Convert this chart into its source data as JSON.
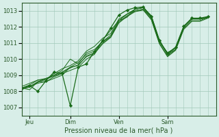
{
  "bg_color": "#d8eee8",
  "grid_color": "#a0c8b8",
  "line_color": "#1a6b1a",
  "marker_color": "#1a6b1a",
  "axis_label_color": "#2a5a2a",
  "tick_label_color": "#2a5a2a",
  "xlabel": "Pression niveau de la mer( hPa )",
  "ylim": [
    1006.5,
    1013.5
  ],
  "yticks": [
    1007,
    1008,
    1009,
    1010,
    1011,
    1012,
    1013
  ],
  "xlim": [
    0,
    144
  ],
  "day_positions": [
    6,
    36,
    72,
    108,
    144
  ],
  "day_labels": [
    "Jeu",
    "Dim",
    "Ven",
    "Sam"
  ],
  "smooth_series": [
    [
      0,
      1008.2,
      6,
      1008.3,
      12,
      1008.5,
      18,
      1008.6,
      24,
      1008.8,
      30,
      1009.0,
      36,
      1009.5,
      42,
      1009.8,
      48,
      1010.3,
      54,
      1010.5,
      60,
      1011.1,
      66,
      1011.5,
      72,
      1012.4,
      78,
      1012.8,
      84,
      1013.1,
      90,
      1013.2,
      96,
      1012.6,
      102,
      1011.1,
      108,
      1010.3,
      114,
      1010.7,
      120,
      1012.0,
      126,
      1012.5,
      132,
      1012.5,
      138,
      1012.6
    ],
    [
      0,
      1008.2,
      6,
      1008.1,
      12,
      1008.6,
      18,
      1008.6,
      24,
      1008.9,
      30,
      1009.1,
      36,
      1009.3,
      42,
      1009.5,
      48,
      1010.0,
      54,
      1010.3,
      60,
      1011.2,
      66,
      1011.8,
      72,
      1012.4,
      78,
      1012.8,
      84,
      1013.0,
      90,
      1013.1,
      96,
      1012.6,
      102,
      1011.1,
      108,
      1010.4,
      114,
      1010.7,
      120,
      1012.0,
      126,
      1012.5,
      132,
      1012.5,
      138,
      1012.6
    ],
    [
      0,
      1008.2,
      6,
      1008.4,
      12,
      1008.7,
      18,
      1008.8,
      24,
      1009.0,
      30,
      1009.3,
      36,
      1010.0,
      42,
      1009.7,
      48,
      1010.4,
      54,
      1010.6,
      60,
      1011.1,
      66,
      1011.4,
      72,
      1012.4,
      78,
      1012.6,
      84,
      1013.1,
      90,
      1013.2,
      96,
      1012.7,
      102,
      1011.1,
      108,
      1010.4,
      114,
      1010.7,
      120,
      1012.0,
      126,
      1012.5,
      132,
      1012.5,
      138,
      1012.6
    ],
    [
      0,
      1008.3,
      6,
      1008.5,
      12,
      1008.7,
      18,
      1008.7,
      24,
      1009.1,
      30,
      1009.4,
      36,
      1009.6,
      42,
      1009.9,
      48,
      1010.5,
      54,
      1010.8,
      60,
      1011.3,
      66,
      1011.6,
      72,
      1012.5,
      78,
      1012.8,
      84,
      1013.1,
      90,
      1013.2,
      96,
      1012.7,
      102,
      1011.2,
      108,
      1010.3,
      114,
      1010.6,
      120,
      1012.0,
      126,
      1012.5,
      132,
      1012.5,
      138,
      1012.6
    ],
    [
      0,
      1008.2,
      6,
      1008.3,
      12,
      1008.6,
      18,
      1008.8,
      24,
      1009.0,
      30,
      1009.2,
      36,
      1009.5,
      42,
      1009.6,
      48,
      1010.2,
      54,
      1010.4,
      60,
      1011.0,
      66,
      1011.4,
      72,
      1012.3,
      78,
      1012.7,
      84,
      1013.0,
      90,
      1013.1,
      96,
      1012.5,
      102,
      1011.0,
      108,
      1010.2,
      114,
      1010.6,
      120,
      1011.9,
      126,
      1012.4,
      132,
      1012.4,
      138,
      1012.6
    ],
    [
      0,
      1008.15,
      6,
      1008.25,
      12,
      1008.55,
      18,
      1008.75,
      24,
      1008.95,
      30,
      1009.15,
      36,
      1009.45,
      42,
      1009.65,
      48,
      1010.15,
      54,
      1010.35,
      60,
      1010.95,
      66,
      1011.35,
      72,
      1012.25,
      78,
      1012.65,
      84,
      1012.95,
      90,
      1013.05,
      96,
      1012.45,
      102,
      1010.95,
      108,
      1010.15,
      114,
      1010.55,
      120,
      1011.85,
      126,
      1012.35,
      132,
      1012.35,
      138,
      1012.55
    ]
  ],
  "jagged_series": [
    [
      0,
      1008.2,
      6,
      1008.35,
      12,
      1008.0,
      18,
      1008.65,
      24,
      1009.2,
      30,
      1009.1,
      36,
      1007.1,
      42,
      1009.5,
      48,
      1009.7,
      54,
      1010.5,
      60,
      1011.15,
      66,
      1011.95,
      72,
      1012.75,
      78,
      1013.05,
      84,
      1013.2,
      90,
      1013.25,
      96,
      1012.65,
      102,
      1011.15,
      108,
      1010.35,
      114,
      1010.75,
      120,
      1012.05,
      126,
      1012.55,
      132,
      1012.55,
      138,
      1012.65
    ]
  ]
}
